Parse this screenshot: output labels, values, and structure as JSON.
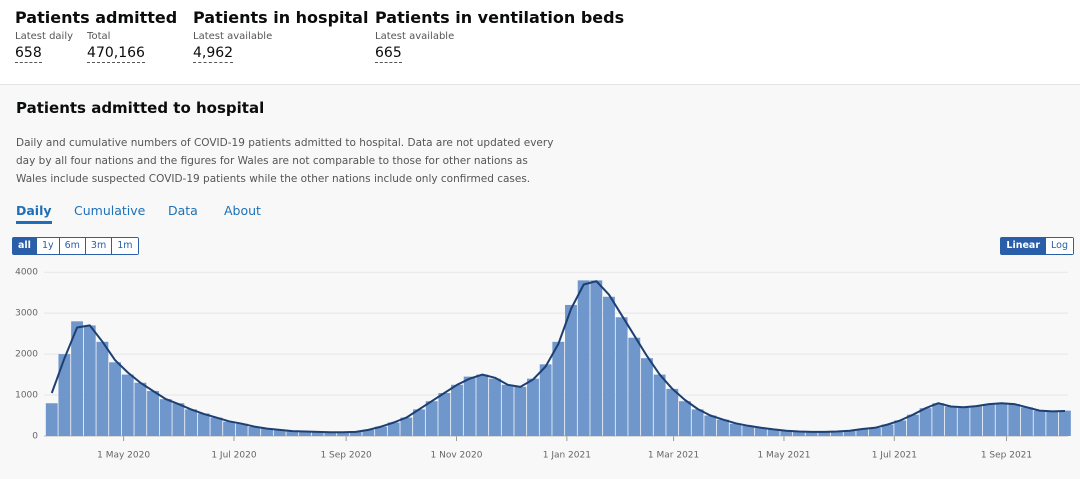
{
  "headline": [
    {
      "title": "Patients admitted",
      "metrics": [
        {
          "label": "Latest daily",
          "value": "658"
        },
        {
          "label": "Total",
          "value": "470,166"
        }
      ]
    },
    {
      "title": "Patients in hospital",
      "metrics": [
        {
          "label": "Latest available",
          "value": "4,962"
        }
      ]
    },
    {
      "title": "Patients in ventilation beds",
      "metrics": [
        {
          "label": "Latest available",
          "value": "665"
        }
      ]
    }
  ],
  "card": {
    "title": "Patients admitted to hospital",
    "description": "Daily and cumulative numbers of COVID-19 patients admitted to hospital. Data are not updated every day by all four nations and the figures for Wales are not comparable to those for other nations as Wales include suspected COVID-19 patients while the other nations include only confirmed cases.",
    "tabs": [
      "Daily",
      "Cumulative",
      "Data",
      "About"
    ],
    "active_tab": 0,
    "ranges": [
      "all",
      "1y",
      "6m",
      "3m",
      "1m"
    ],
    "active_range": 0,
    "scales": [
      "Linear",
      "Log"
    ],
    "active_scale": 0
  },
  "chart_data": {
    "type": "bar",
    "log": false,
    "grid": true,
    "x": [
      "2020-03-19",
      "2020-03-26",
      "2020-04-02",
      "2020-04-09",
      "2020-04-16",
      "2020-04-23",
      "2020-04-30",
      "2020-05-07",
      "2020-05-14",
      "2020-05-21",
      "2020-05-28",
      "2020-06-04",
      "2020-06-11",
      "2020-06-18",
      "2020-06-25",
      "2020-07-02",
      "2020-07-09",
      "2020-07-16",
      "2020-07-23",
      "2020-07-30",
      "2020-08-06",
      "2020-08-13",
      "2020-08-20",
      "2020-08-27",
      "2020-09-03",
      "2020-09-10",
      "2020-09-17",
      "2020-09-24",
      "2020-10-01",
      "2020-10-08",
      "2020-10-15",
      "2020-10-22",
      "2020-10-29",
      "2020-11-05",
      "2020-11-12",
      "2020-11-19",
      "2020-11-26",
      "2020-12-03",
      "2020-12-10",
      "2020-12-17",
      "2020-12-24",
      "2020-12-31",
      "2021-01-07",
      "2021-01-14",
      "2021-01-21",
      "2021-01-28",
      "2021-02-04",
      "2021-02-11",
      "2021-02-18",
      "2021-02-25",
      "2021-03-04",
      "2021-03-11",
      "2021-03-18",
      "2021-03-25",
      "2021-04-01",
      "2021-04-08",
      "2021-04-15",
      "2021-04-22",
      "2021-04-29",
      "2021-05-06",
      "2021-05-13",
      "2021-05-20",
      "2021-05-27",
      "2021-06-03",
      "2021-06-10",
      "2021-06-17",
      "2021-06-24",
      "2021-07-01",
      "2021-07-08",
      "2021-07-15",
      "2021-07-22",
      "2021-07-29",
      "2021-08-05",
      "2021-08-12",
      "2021-08-19",
      "2021-08-26",
      "2021-09-02",
      "2021-09-09",
      "2021-09-16",
      "2021-09-23",
      "2021-09-30"
    ],
    "series": [
      {
        "type": "bar",
        "color": "#6f97cc",
        "values": [
          800,
          2000,
          2800,
          2700,
          2300,
          1800,
          1500,
          1300,
          1100,
          900,
          800,
          650,
          550,
          450,
          350,
          300,
          220,
          180,
          140,
          120,
          110,
          100,
          90,
          90,
          100,
          150,
          230,
          330,
          450,
          650,
          850,
          1050,
          1250,
          1450,
          1500,
          1400,
          1250,
          1200,
          1400,
          1750,
          2300,
          3200,
          3800,
          3800,
          3400,
          2900,
          2400,
          1900,
          1500,
          1150,
          850,
          650,
          500,
          400,
          300,
          250,
          200,
          160,
          130,
          110,
          100,
          100,
          110,
          130,
          170,
          200,
          280,
          380,
          520,
          680,
          800,
          720,
          700,
          730,
          780,
          800,
          780,
          700,
          620,
          600,
          620
        ]
      },
      {
        "type": "line",
        "color": "#1d3f72",
        "values": [
          1050,
          1900,
          2650,
          2700,
          2300,
          1850,
          1550,
          1300,
          1100,
          900,
          780,
          650,
          540,
          450,
          360,
          300,
          230,
          180,
          150,
          120,
          110,
          100,
          90,
          90,
          100,
          150,
          230,
          330,
          450,
          650,
          850,
          1050,
          1250,
          1400,
          1500,
          1420,
          1250,
          1200,
          1380,
          1700,
          2250,
          3100,
          3700,
          3780,
          3450,
          2950,
          2450,
          1950,
          1500,
          1150,
          880,
          660,
          500,
          400,
          310,
          250,
          200,
          160,
          130,
          110,
          100,
          100,
          110,
          130,
          170,
          200,
          280,
          380,
          520,
          680,
          800,
          720,
          700,
          730,
          780,
          800,
          780,
          700,
          620,
          600,
          610
        ]
      }
    ],
    "xlim": [
      "2020-03-18",
      "2021-10-05"
    ],
    "xticks": [
      {
        "value": "2020-05-01",
        "label": "1 May 2020"
      },
      {
        "value": "2020-07-01",
        "label": "1 Jul 2020"
      },
      {
        "value": "2020-09-01",
        "label": "1 Sep 2020"
      },
      {
        "value": "2020-11-01",
        "label": "1 Nov 2020"
      },
      {
        "value": "2021-01-01",
        "label": "1 Jan 2021"
      },
      {
        "value": "2021-03-01",
        "label": "1 Mar 2021"
      },
      {
        "value": "2021-05-01",
        "label": "1 May 2021"
      },
      {
        "value": "2021-07-01",
        "label": "1 Jul 2021"
      },
      {
        "value": "2021-09-01",
        "label": "1 Sep 2021"
      }
    ],
    "ylim": [
      0,
      4200
    ],
    "yticks": [
      0,
      1000,
      2000,
      3000,
      4000
    ]
  }
}
